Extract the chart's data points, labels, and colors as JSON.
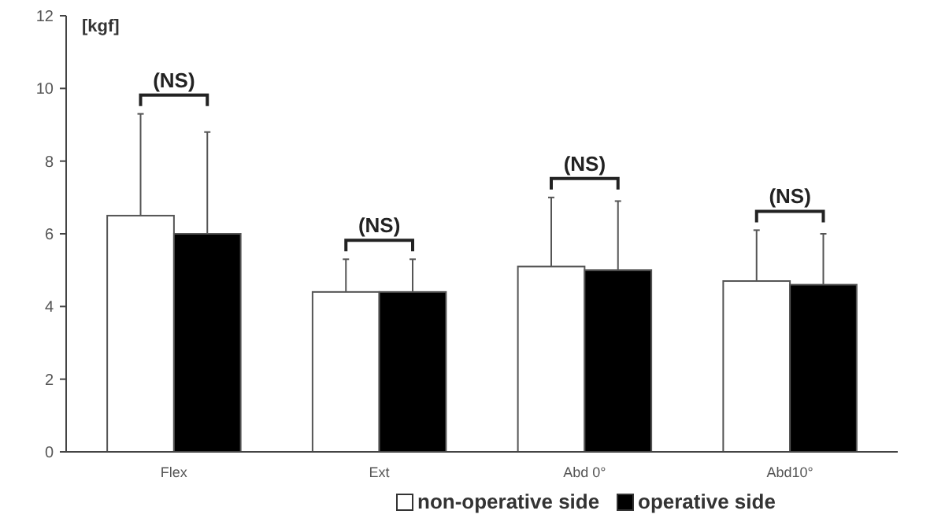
{
  "chart_data": {
    "type": "bar",
    "ylabel": "[kgf]",
    "categories": [
      "Flex",
      "Ext",
      "Abd 0°",
      "Abd10°"
    ],
    "series": [
      {
        "name": "non-operative side",
        "color": "#ffffff",
        "values": [
          6.5,
          4.4,
          5.1,
          4.7
        ],
        "errors": [
          2.8,
          0.9,
          1.9,
          1.4
        ]
      },
      {
        "name": "operative side",
        "color": "#000000",
        "values": [
          6.0,
          4.4,
          5.0,
          4.6
        ],
        "errors": [
          2.8,
          0.9,
          1.9,
          1.4
        ]
      }
    ],
    "ylim": [
      0,
      12
    ],
    "yticks": [
      0,
      2,
      4,
      6,
      8,
      10,
      12
    ],
    "grid": false,
    "legend": "bottom",
    "annotations": [
      "(NS)",
      "(NS)",
      "(NS)",
      "(NS)"
    ]
  }
}
